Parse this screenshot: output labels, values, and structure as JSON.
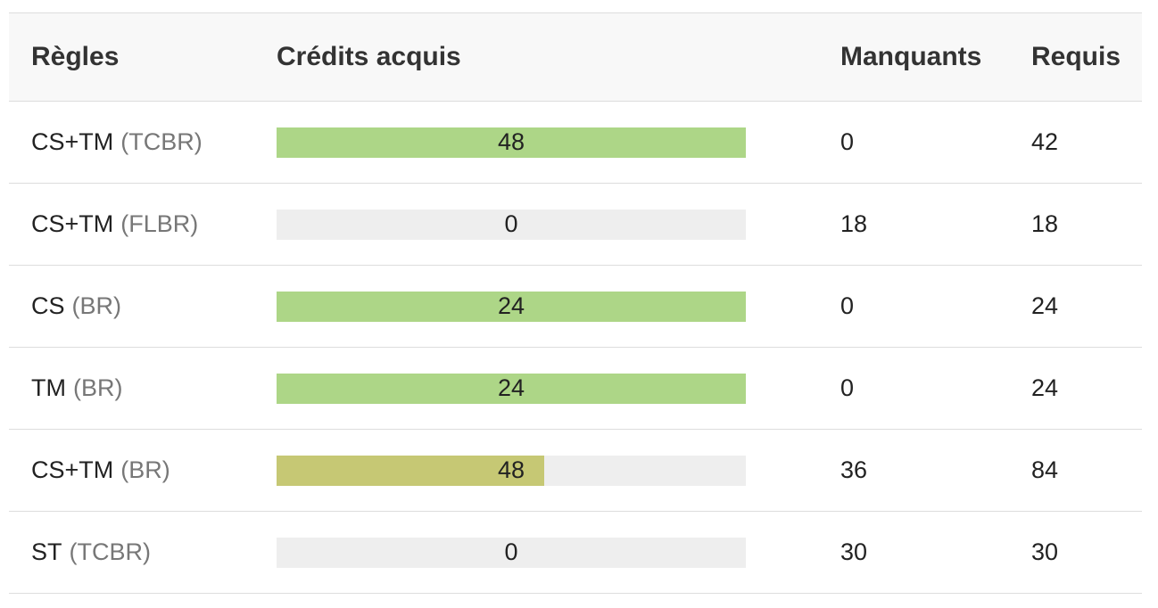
{
  "colors": {
    "complete": "#add687",
    "partial": "#c6c874",
    "empty": "#eeeeee"
  },
  "table": {
    "headers": {
      "rules": "Règles",
      "credits": "Crédits acquis",
      "missing": "Manquants",
      "required": "Requis"
    },
    "rows": [
      {
        "rule": "CS+TM",
        "type": "(TCBR)",
        "credits": "48",
        "missing": "0",
        "required": "42",
        "progress": 1.0,
        "status": "complete"
      },
      {
        "rule": "CS+TM",
        "type": "(FLBR)",
        "credits": "0",
        "missing": "18",
        "required": "18",
        "progress": 0.0,
        "status": "empty"
      },
      {
        "rule": "CS",
        "type": "(BR)",
        "credits": "24",
        "missing": "0",
        "required": "24",
        "progress": 1.0,
        "status": "complete"
      },
      {
        "rule": "TM",
        "type": "(BR)",
        "credits": "24",
        "missing": "0",
        "required": "24",
        "progress": 1.0,
        "status": "complete"
      },
      {
        "rule": "CS+TM",
        "type": "(BR)",
        "credits": "48",
        "missing": "36",
        "required": "84",
        "progress": 0.571,
        "status": "partial"
      },
      {
        "rule": "ST",
        "type": "(TCBR)",
        "credits": "0",
        "missing": "30",
        "required": "30",
        "progress": 0.0,
        "status": "empty"
      }
    ]
  }
}
